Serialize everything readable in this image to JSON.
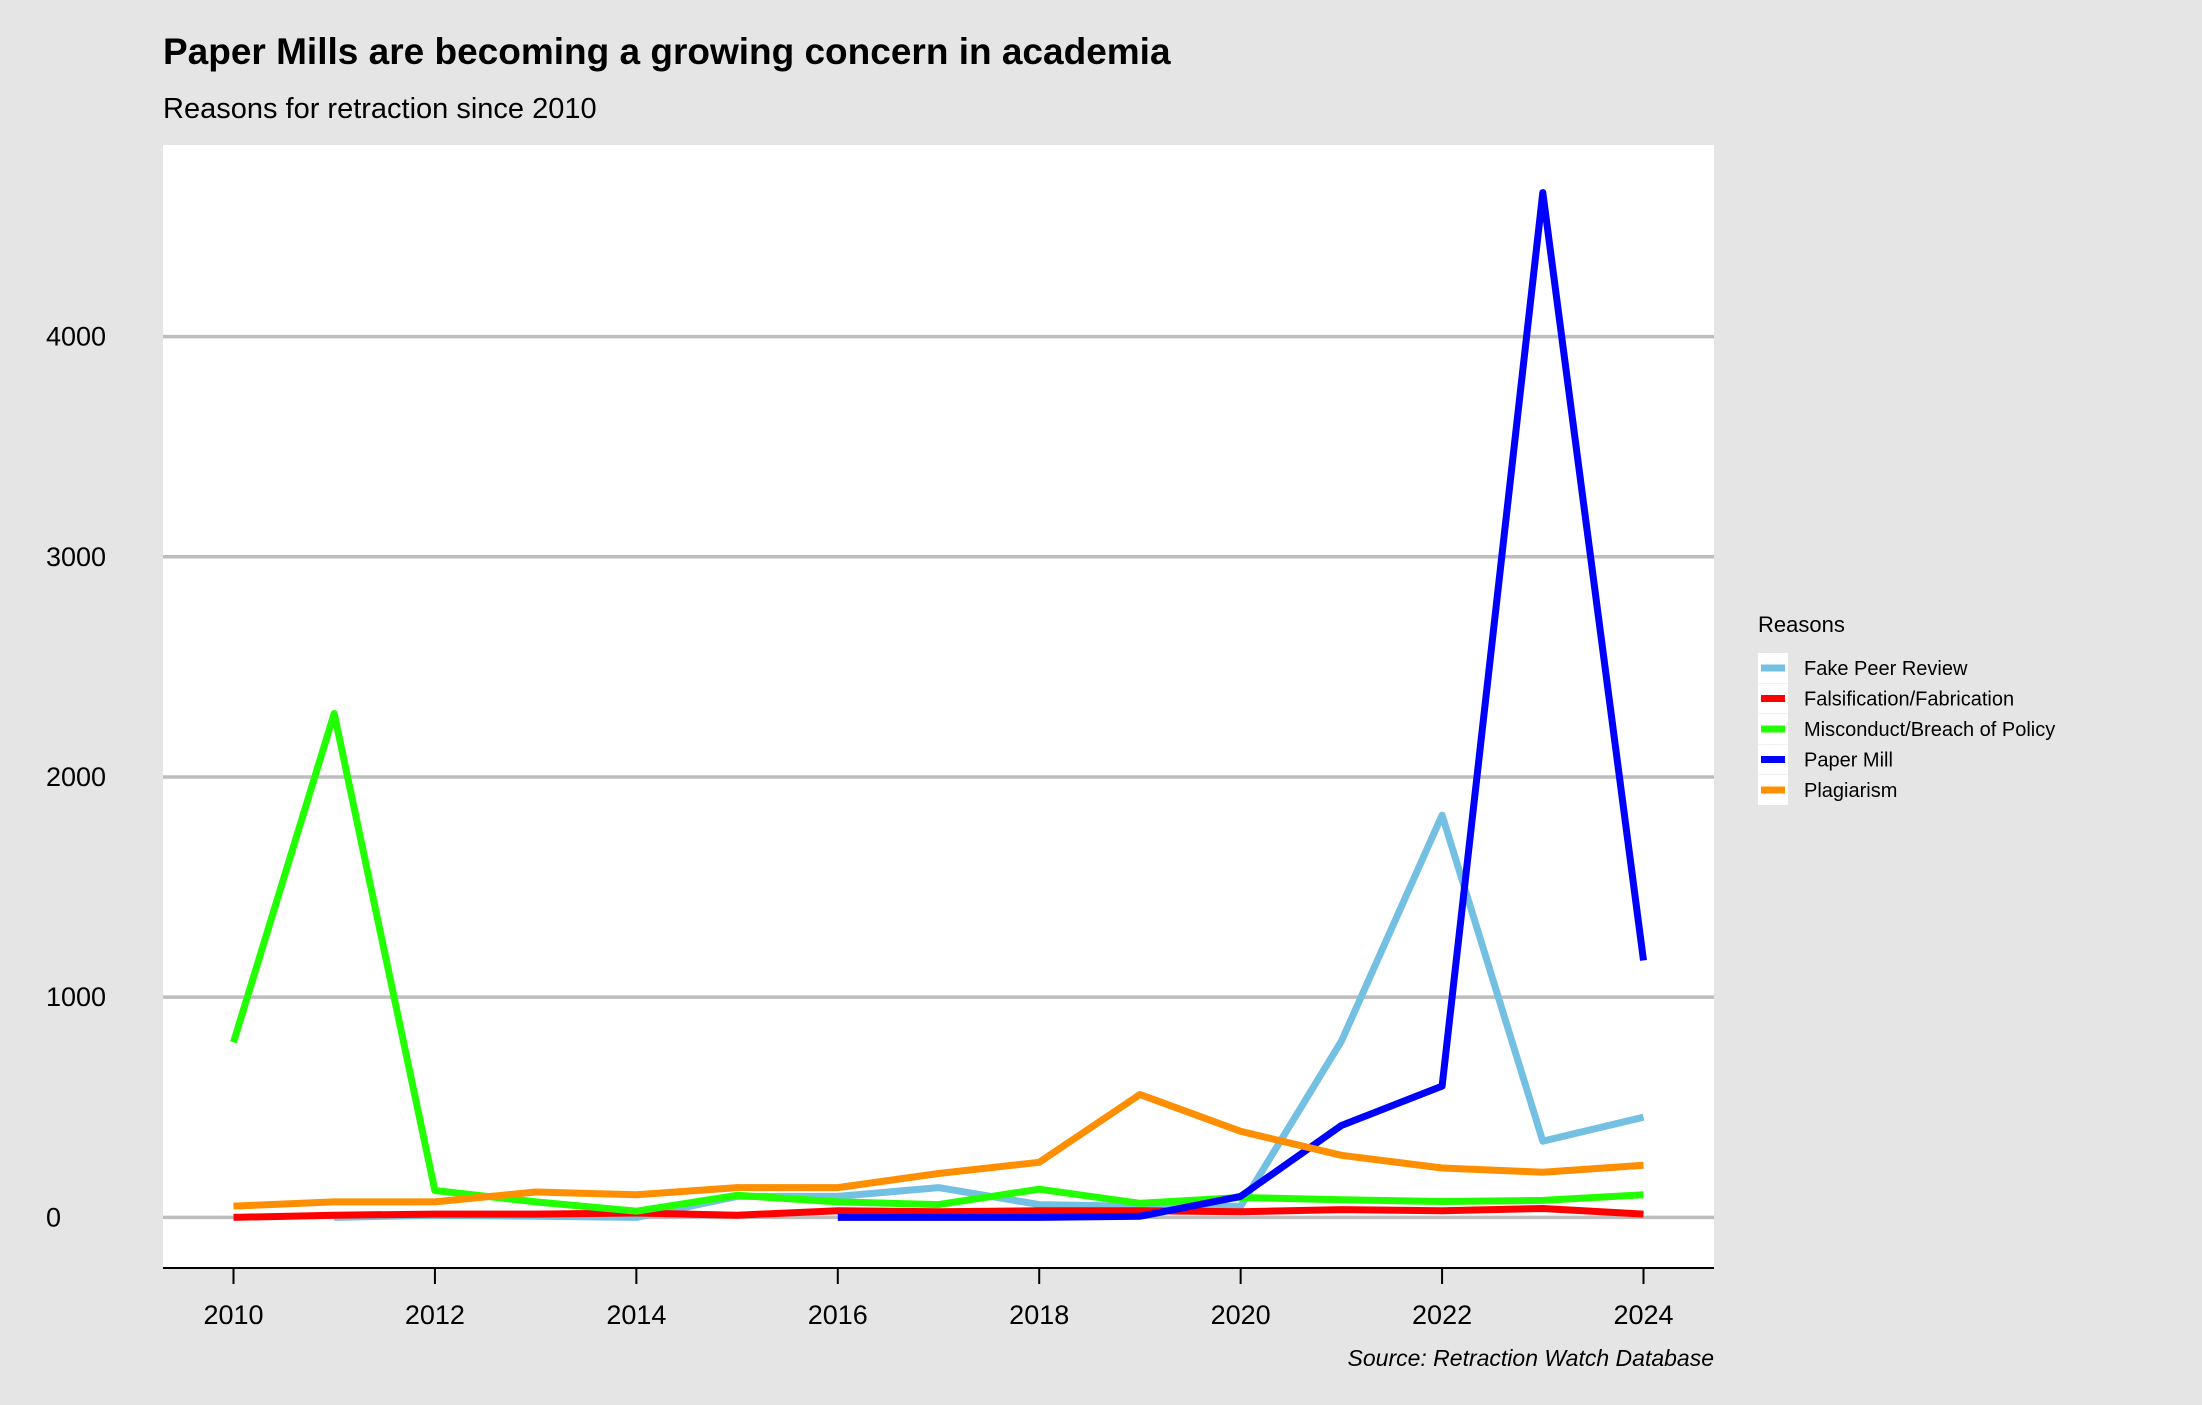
{
  "chart_data": {
    "type": "line",
    "title": "Paper Mills are becoming a growing concern in academia",
    "subtitle": "Reasons for retraction since 2010",
    "caption": "Source: Retraction Watch Database",
    "xlabel": "",
    "ylabel": "",
    "xlim": [
      2009.3,
      2024.7
    ],
    "ylim": [
      -230,
      4870
    ],
    "x_ticks": [
      2010,
      2012,
      2014,
      2016,
      2018,
      2020,
      2022,
      2024
    ],
    "y_ticks": [
      0,
      1000,
      2000,
      3000,
      4000
    ],
    "grid": "horizontal",
    "legend": {
      "title": "Reasons",
      "placement": "right"
    },
    "series": [
      {
        "name": "Fake Peer Review",
        "color": "#74c0e3",
        "x": [
          2011,
          2012,
          2013,
          2014,
          2015,
          2016,
          2017,
          2018,
          2019,
          2020,
          2021,
          2022,
          2023,
          2024
        ],
        "y": [
          0,
          10,
          5,
          0,
          95,
          95,
          135,
          58,
          50,
          50,
          800,
          1827,
          346,
          455
        ]
      },
      {
        "name": "Falsification/Fabrication",
        "color": "#ff0000",
        "x": [
          2010,
          2011,
          2012,
          2013,
          2014,
          2015,
          2016,
          2017,
          2018,
          2019,
          2020,
          2021,
          2022,
          2023,
          2024
        ],
        "y": [
          0,
          10,
          15,
          15,
          20,
          10,
          30,
          25,
          30,
          30,
          25,
          35,
          30,
          40,
          15
        ]
      },
      {
        "name": "Misconduct/Breach of Policy",
        "color": "#22ff00",
        "x": [
          2010,
          2011,
          2012,
          2013,
          2014,
          2015,
          2016,
          2017,
          2018,
          2019,
          2020,
          2021,
          2022,
          2023,
          2024
        ],
        "y": [
          795,
          2288,
          122,
          70,
          28,
          100,
          70,
          58,
          128,
          64,
          90,
          80,
          72,
          77,
          103
        ]
      },
      {
        "name": "Paper Mill",
        "color": "#0000ff",
        "x": [
          2016,
          2017,
          2018,
          2019,
          2020,
          2021,
          2022,
          2023,
          2024
        ],
        "y": [
          0,
          0,
          0,
          5,
          95,
          417,
          596,
          4654,
          1167
        ]
      },
      {
        "name": "Plagiarism",
        "color": "#ff8f00",
        "x": [
          2010,
          2011,
          2012,
          2013,
          2014,
          2015,
          2016,
          2017,
          2018,
          2019,
          2020,
          2021,
          2022,
          2023,
          2024
        ],
        "y": [
          51,
          70,
          70,
          115,
          103,
          135,
          135,
          199,
          250,
          558,
          391,
          282,
          224,
          205,
          237
        ]
      }
    ]
  }
}
